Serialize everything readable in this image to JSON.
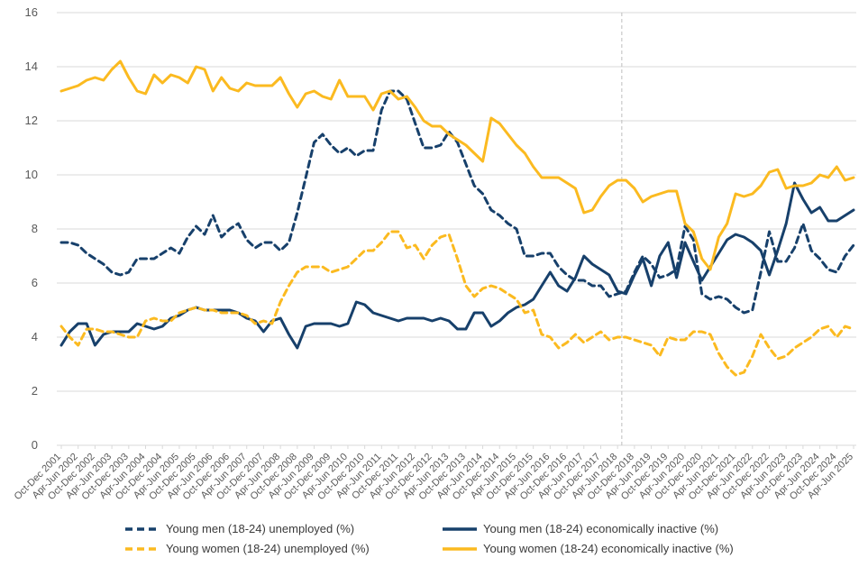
{
  "chart_data": {
    "type": "line",
    "title": "",
    "xlabel": "",
    "ylabel": "",
    "ylim": [
      0,
      16
    ],
    "ytick_step": 2,
    "grid": "horizontal",
    "legend_position": "bottom",
    "colors": {
      "navy": "#17406B",
      "gold": "#FBBA20",
      "gridline": "#D9D9D9",
      "axis_text": "#595959",
      "reference_line": "#BFBFBF"
    },
    "x_labels": [
      "Oct-Dec 2001",
      "Apr-Jun 2002",
      "Oct-Dec 2002",
      "Apr-Jun 2003",
      "Oct-Dec 2003",
      "Apr-Jun 2004",
      "Oct-Dec 2004",
      "Apr-Jun 2005",
      "Oct-Dec 2005",
      "Apr-Jun 2006",
      "Oct-Dec 2006",
      "Apr-Jun 2007",
      "Oct-Dec 2007",
      "Apr-Jun 2008",
      "Oct-Dec 2008",
      "Apr-Jun 2009",
      "Oct-Dec 2009",
      "Apr-Jun 2010",
      "Oct-Dec 2010",
      "Apr-Jun 2011",
      "Oct-Dec 2011",
      "Apr-Jun 2012",
      "Oct-Dec 2012",
      "Apr-Jun 2013",
      "Oct-Dec 2013",
      "Apr-Jun 2014",
      "Oct-Dec 2014",
      "Apr-Jun 2015",
      "Oct-Dec 2015",
      "Apr-Jun 2016",
      "Oct-Dec 2016",
      "Apr-Jun 2017",
      "Oct-Dec 2017",
      "Apr-Jun 2018",
      "Oct-Dec 2018",
      "Apr-Jun 2019",
      "Oct-Dec 2019",
      "Apr-Jun 2020",
      "Oct-Dec 2020",
      "Apr-Jun 2021",
      "Oct-Dec 2021",
      "Apr-Jun 2022",
      "Oct-Dec 2022",
      "Apr-Jun 2023",
      "Oct-Dec 2023",
      "Apr-Jun 2024",
      "Oct-Dec 2024",
      "Apr-Jun 2025"
    ],
    "x_label_every": 2,
    "reference_line": {
      "index": 66.5,
      "style": "dashed"
    },
    "series": [
      {
        "name": "Young men (18-24) unemployed (%)",
        "color_key": "navy",
        "dash": true,
        "values": [
          7.5,
          7.5,
          7.4,
          7.1,
          6.9,
          6.7,
          6.4,
          6.3,
          6.4,
          6.9,
          6.9,
          6.9,
          7.1,
          7.3,
          7.1,
          7.7,
          8.1,
          7.8,
          8.5,
          7.7,
          8.0,
          8.2,
          7.6,
          7.3,
          7.5,
          7.5,
          7.2,
          7.5,
          8.6,
          9.9,
          11.2,
          11.5,
          11.1,
          10.8,
          11.0,
          10.7,
          10.9,
          10.9,
          12.4,
          13.1,
          13.1,
          12.8,
          11.9,
          11.0,
          11.0,
          11.1,
          11.6,
          11.2,
          10.4,
          9.6,
          9.3,
          8.7,
          8.5,
          8.2,
          8.0,
          7.0,
          7.0,
          7.1,
          7.1,
          6.6,
          6.3,
          6.1,
          6.1,
          5.9,
          5.9,
          5.5,
          5.6,
          5.7,
          6.4,
          7.0,
          6.7,
          6.2,
          6.3,
          6.5,
          8.1,
          7.6,
          5.6,
          5.4,
          5.5,
          5.4,
          5.1,
          4.9,
          5.0,
          6.4,
          7.9,
          6.8,
          6.8,
          7.3,
          8.2,
          7.2,
          6.9,
          6.5,
          6.4,
          7.0,
          7.4
        ]
      },
      {
        "name": "Young men (18-24) economically inactive (%)",
        "color_key": "navy",
        "dash": false,
        "values": [
          3.7,
          4.2,
          4.5,
          4.5,
          3.7,
          4.1,
          4.2,
          4.2,
          4.2,
          4.5,
          4.4,
          4.3,
          4.4,
          4.7,
          4.8,
          5.0,
          5.1,
          5.0,
          5.0,
          5.0,
          5.0,
          4.9,
          4.7,
          4.6,
          4.2,
          4.6,
          4.7,
          4.1,
          3.6,
          4.4,
          4.5,
          4.5,
          4.5,
          4.4,
          4.5,
          5.3,
          5.2,
          4.9,
          4.8,
          4.7,
          4.6,
          4.7,
          4.7,
          4.7,
          4.6,
          4.7,
          4.6,
          4.3,
          4.3,
          4.9,
          4.9,
          4.4,
          4.6,
          4.9,
          5.1,
          5.2,
          5.4,
          5.9,
          6.4,
          5.9,
          5.7,
          6.2,
          7.0,
          6.7,
          6.5,
          6.3,
          5.7,
          5.6,
          6.3,
          6.9,
          5.9,
          7.0,
          7.5,
          6.2,
          7.5,
          6.8,
          6.1,
          6.6,
          7.1,
          7.6,
          7.8,
          7.7,
          7.5,
          7.2,
          6.3,
          7.2,
          8.2,
          9.7,
          9.1,
          8.6,
          8.8,
          8.3,
          8.3,
          8.5,
          8.7
        ]
      },
      {
        "name": "Young women (18-24) unemployed (%)",
        "color_key": "gold",
        "dash": true,
        "values": [
          4.4,
          4.0,
          3.7,
          4.3,
          4.3,
          4.2,
          4.2,
          4.1,
          4.0,
          4.0,
          4.6,
          4.7,
          4.6,
          4.6,
          4.9,
          5.0,
          5.1,
          5.0,
          5.0,
          4.9,
          4.9,
          4.9,
          4.8,
          4.5,
          4.6,
          4.5,
          5.3,
          5.9,
          6.4,
          6.6,
          6.6,
          6.6,
          6.4,
          6.5,
          6.6,
          6.9,
          7.2,
          7.2,
          7.5,
          7.9,
          7.9,
          7.3,
          7.4,
          6.9,
          7.4,
          7.7,
          7.8,
          6.9,
          5.9,
          5.5,
          5.8,
          5.9,
          5.8,
          5.6,
          5.4,
          4.9,
          5.0,
          4.1,
          4.0,
          3.6,
          3.8,
          4.1,
          3.8,
          4.0,
          4.2,
          3.9,
          4.0,
          4.0,
          3.9,
          3.8,
          3.7,
          3.3,
          4.0,
          3.9,
          3.9,
          4.2,
          4.2,
          4.1,
          3.4,
          2.9,
          2.6,
          2.7,
          3.3,
          4.1,
          3.6,
          3.2,
          3.3,
          3.6,
          3.8,
          4.0,
          4.3,
          4.4,
          4.0,
          4.4,
          4.3
        ]
      },
      {
        "name": "Young women (18-24) economically inactive (%)",
        "color_key": "gold",
        "dash": false,
        "values": [
          13.1,
          13.2,
          13.3,
          13.5,
          13.6,
          13.5,
          13.9,
          14.2,
          13.6,
          13.1,
          13.0,
          13.7,
          13.4,
          13.7,
          13.6,
          13.4,
          14.0,
          13.9,
          13.1,
          13.6,
          13.2,
          13.1,
          13.4,
          13.3,
          13.3,
          13.3,
          13.6,
          13.0,
          12.5,
          13.0,
          13.1,
          12.9,
          12.8,
          13.5,
          12.9,
          12.9,
          12.9,
          12.4,
          13.0,
          13.1,
          12.8,
          12.9,
          12.5,
          12.0,
          11.8,
          11.8,
          11.5,
          11.3,
          11.1,
          10.8,
          10.5,
          12.1,
          11.9,
          11.5,
          11.1,
          10.8,
          10.3,
          9.9,
          9.9,
          9.9,
          9.7,
          9.5,
          8.6,
          8.7,
          9.2,
          9.6,
          9.8,
          9.8,
          9.5,
          9.0,
          9.2,
          9.3,
          9.4,
          9.4,
          8.2,
          7.9,
          6.9,
          6.5,
          7.7,
          8.2,
          9.3,
          9.2,
          9.3,
          9.6,
          10.1,
          10.2,
          9.5,
          9.6,
          9.6,
          9.7,
          10.0,
          9.9,
          10.3,
          9.8,
          9.9
        ]
      }
    ]
  },
  "legend": {
    "items": [
      "Young men (18-24) unemployed (%)",
      "Young men (18-24) economically inactive (%)",
      "Young women (18-24) unemployed (%)",
      "Young women (18-24) economically inactive (%)"
    ]
  }
}
